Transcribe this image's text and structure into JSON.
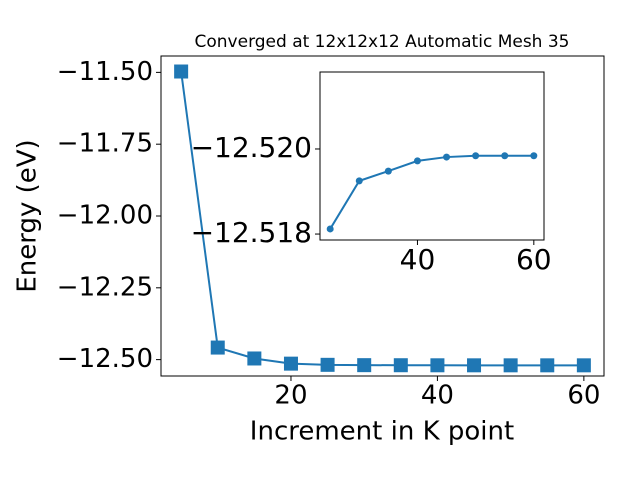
{
  "chart_data": [
    {
      "type": "line",
      "title": "Converged at 12x12x12 Automatic Mesh 35",
      "x_label": "Increment in K point",
      "y_label": "Energy (eV)",
      "x": [
        5,
        10,
        15,
        20,
        25,
        30,
        35,
        40,
        45,
        50,
        55,
        60
      ],
      "series": [
        {
          "color": "#1f77b4",
          "marker": "square",
          "values": [
            -11.497,
            -12.458,
            -12.496,
            -12.514,
            -12.51812,
            -12.51925,
            -12.51948,
            -12.51972,
            -12.51981,
            -12.51984,
            -12.51984,
            -12.51984
          ]
        }
      ],
      "xlim": [
        2.25,
        62.75
      ],
      "xticks": [
        20,
        40,
        60
      ],
      "ylim": [
        -12.557,
        -11.443
      ],
      "yticks": [
        {
          "value": -11.5,
          "label": "−11.50"
        },
        {
          "value": -11.75,
          "label": "−11.75"
        },
        {
          "value": -12.0,
          "label": "−12.00"
        },
        {
          "value": -12.25,
          "label": "−12.25"
        },
        {
          "value": -12.5,
          "label": "−12.50"
        }
      ]
    },
    {
      "type": "line",
      "x": [
        25,
        30,
        35,
        40,
        45,
        50,
        55,
        60
      ],
      "series": [
        {
          "color": "#1f77b4",
          "marker": "circle",
          "values": [
            -12.51812,
            -12.51925,
            -12.51948,
            -12.51972,
            -12.51981,
            -12.51984,
            -12.51984,
            -12.51984
          ]
        }
      ],
      "xlim": [
        23.25,
        61.75
      ],
      "xticks": [
        40,
        60
      ],
      "ylim": [
        -12.51786,
        -12.52181
      ],
      "yticks": [
        {
          "value": -12.52,
          "label": "−12.520"
        },
        {
          "value": -12.518,
          "label": "−12.518"
        }
      ]
    }
  ]
}
